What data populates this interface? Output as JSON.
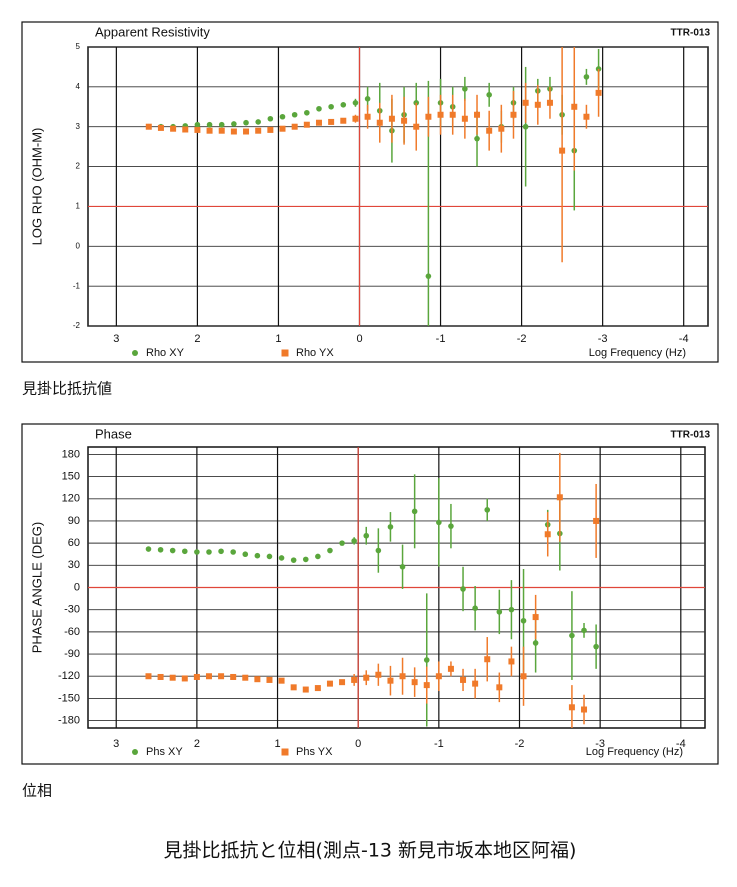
{
  "chart_data": [
    {
      "type": "scatter",
      "title": "Apparent Resistivity",
      "code": "TTR-013",
      "ylabel": "LOG RHO (OHM-M)",
      "xlabel": "Log Frequency (Hz)",
      "x": [
        2.6,
        2.45,
        2.3,
        2.15,
        2.0,
        1.85,
        1.7,
        1.55,
        1.4,
        1.25,
        1.1,
        0.95,
        0.8,
        0.65,
        0.5,
        0.35,
        0.2,
        0.05,
        -0.1,
        -0.25,
        -0.4,
        -0.55,
        -0.7,
        -0.85,
        -1.0,
        -1.15,
        -1.3,
        -1.45,
        -1.6,
        -1.75,
        -1.9,
        -2.05,
        -2.2,
        -2.35,
        -2.5,
        -2.65,
        -2.8,
        -2.95
      ],
      "xlim": [
        3.35,
        -4.3
      ],
      "xticks": [
        3,
        2,
        1,
        0,
        -1,
        -2,
        -3,
        -4
      ],
      "ylim": [
        -2,
        5
      ],
      "yticks": [
        -2,
        -1,
        0,
        1,
        2,
        3,
        4,
        5
      ],
      "ref_lines": {
        "x": 0,
        "y": 1
      },
      "series": [
        {
          "name": "Rho XY",
          "color": "#5aa63c",
          "marker": "circle",
          "values": [
            3.0,
            3.0,
            3.0,
            3.02,
            3.05,
            3.05,
            3.05,
            3.07,
            3.1,
            3.12,
            3.2,
            3.25,
            3.3,
            3.35,
            3.45,
            3.5,
            3.55,
            3.6,
            3.7,
            3.4,
            2.9,
            3.3,
            3.6,
            -0.75,
            3.6,
            3.5,
            3.95,
            2.7,
            3.8,
            3.0,
            3.6,
            3.0,
            3.9,
            3.95,
            3.3,
            2.4,
            4.25,
            4.45
          ],
          "errors": [
            null,
            null,
            null,
            null,
            null,
            null,
            null,
            null,
            null,
            null,
            null,
            null,
            null,
            null,
            null,
            null,
            null,
            0.1,
            0.3,
            0.7,
            0.8,
            0.7,
            0.5,
            4.9,
            0.6,
            0.5,
            0.3,
            0.7,
            0.3,
            0.4,
            0.4,
            1.5,
            0.3,
            0.3,
            0.5,
            1.5,
            0.2,
            0.5
          ]
        },
        {
          "name": "Rho YX",
          "color": "#f07a2a",
          "marker": "square",
          "values": [
            3.0,
            2.97,
            2.95,
            2.93,
            2.92,
            2.9,
            2.9,
            2.88,
            2.88,
            2.9,
            2.92,
            2.95,
            3.0,
            3.05,
            3.1,
            3.12,
            3.15,
            3.2,
            3.25,
            3.1,
            3.2,
            3.15,
            3.0,
            3.25,
            3.3,
            3.3,
            3.2,
            3.3,
            2.9,
            2.95,
            3.3,
            3.6,
            3.55,
            3.6,
            2.4,
            3.5,
            3.25,
            3.85
          ],
          "errors": [
            null,
            null,
            null,
            null,
            null,
            null,
            null,
            null,
            null,
            null,
            null,
            null,
            null,
            null,
            null,
            null,
            null,
            0.1,
            0.3,
            0.5,
            0.6,
            0.6,
            0.6,
            0.5,
            0.5,
            0.5,
            0.5,
            0.5,
            0.5,
            0.6,
            0.6,
            0.5,
            0.5,
            0.4,
            2.8,
            1.6,
            0.3,
            0.6
          ]
        }
      ]
    },
    {
      "type": "scatter",
      "title": "Phase",
      "code": "TTR-013",
      "ylabel": "PHASE ANGLE (DEG)",
      "xlabel": "Log Frequency (Hz)",
      "x": [
        2.6,
        2.45,
        2.3,
        2.15,
        2.0,
        1.85,
        1.7,
        1.55,
        1.4,
        1.25,
        1.1,
        0.95,
        0.8,
        0.65,
        0.5,
        0.35,
        0.2,
        0.05,
        -0.1,
        -0.25,
        -0.4,
        -0.55,
        -0.7,
        -0.85,
        -1.0,
        -1.15,
        -1.3,
        -1.45,
        -1.6,
        -1.75,
        -1.9,
        -2.05,
        -2.2,
        -2.35,
        -2.5,
        -2.65,
        -2.8,
        -2.95
      ],
      "xlim": [
        3.35,
        -4.3
      ],
      "xticks": [
        3,
        2,
        1,
        0,
        -1,
        -2,
        -3,
        -4
      ],
      "ylim": [
        -190,
        190
      ],
      "yticks": [
        180,
        150,
        120,
        90,
        60,
        30,
        0,
        -30,
        -60,
        -90,
        -120,
        -150,
        -180
      ],
      "ref_lines": {
        "x": 0,
        "y": 0
      },
      "series": [
        {
          "name": "Phs XY",
          "color": "#5aa63c",
          "marker": "circle",
          "values": [
            52,
            51,
            50,
            49,
            48,
            48,
            49,
            48,
            45,
            43,
            42,
            40,
            37,
            38,
            42,
            50,
            60,
            63,
            70,
            50,
            82,
            28,
            103,
            -98,
            88,
            83,
            -2,
            -28,
            105,
            -33,
            -30,
            -45,
            -75,
            85,
            73,
            -65,
            -58,
            -80
          ],
          "errors": [
            null,
            null,
            null,
            null,
            null,
            null,
            null,
            null,
            null,
            null,
            null,
            null,
            null,
            null,
            null,
            null,
            null,
            5,
            12,
            30,
            20,
            30,
            50,
            90,
            60,
            30,
            30,
            30,
            15,
            30,
            40,
            70,
            40,
            20,
            50,
            60,
            10,
            30
          ]
        },
        {
          "name": "Phs YX",
          "color": "#f07a2a",
          "marker": "square",
          "values": [
            -120,
            -121,
            -122,
            -123,
            -121,
            -120,
            -120,
            -121,
            -122,
            -124,
            -125,
            -126,
            -135,
            -138,
            -136,
            -130,
            -128,
            -125,
            -122,
            -118,
            -126,
            -120,
            -128,
            -132,
            -120,
            -110,
            -125,
            -130,
            -97,
            -135,
            -100,
            -120,
            -40,
            72,
            122,
            -162,
            -165,
            90
          ],
          "errors": [
            null,
            null,
            null,
            null,
            null,
            null,
            null,
            null,
            null,
            null,
            null,
            null,
            null,
            null,
            null,
            null,
            null,
            8,
            10,
            15,
            20,
            25,
            20,
            25,
            20,
            10,
            15,
            20,
            30,
            20,
            20,
            40,
            30,
            30,
            60,
            30,
            20,
            50
          ]
        }
      ]
    }
  ],
  "captions": {
    "rho": "見掛比抵抗値",
    "phase": "位相",
    "main": "見掛比抵抗と位相(測点-13 新見市坂本地区阿福)"
  }
}
